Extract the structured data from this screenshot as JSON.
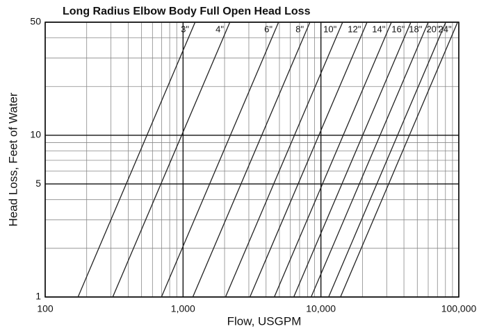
{
  "chart_data": {
    "type": "line",
    "title": "Long Radius Elbow Body Full Open Head Loss",
    "x_label": "Flow, USGPM",
    "y_label": "Head Loss, Feet of Water",
    "log_x": true,
    "log_y": true,
    "grid": true,
    "color": "#222222",
    "xlim": [
      100,
      100000
    ],
    "ylim": [
      1,
      50
    ],
    "xticks": [
      100,
      {
        "value": 1000,
        "label": "1,000"
      },
      {
        "value": 10000,
        "label": "10,000"
      },
      {
        "value": 100000,
        "label": "100,000"
      }
    ],
    "yticks": [
      1,
      5,
      10,
      50
    ],
    "series": [
      {
        "name": "3\"",
        "x": [
          173,
          1223
        ],
        "values": [
          1,
          50
        ]
      },
      {
        "name": "4\"",
        "x": [
          309,
          2185
        ],
        "values": [
          1,
          50
        ]
      },
      {
        "name": "6\"",
        "x": [
          697,
          4928
        ],
        "values": [
          1,
          50
        ]
      },
      {
        "name": "8\"",
        "x": [
          1177,
          8322
        ],
        "values": [
          1,
          50
        ]
      },
      {
        "name": "10\"",
        "x": [
          2032,
          14370
        ],
        "values": [
          1,
          50
        ]
      },
      {
        "name": "12\"",
        "x": [
          3055,
          21600
        ],
        "values": [
          1,
          50
        ]
      },
      {
        "name": "14\"",
        "x": [
          4590,
          32450
        ],
        "values": [
          1,
          50
        ]
      },
      {
        "name": "16\"",
        "x": [
          6350,
          44900
        ],
        "values": [
          1,
          50
        ]
      },
      {
        "name": "18\"",
        "x": [
          8490,
          60030
        ],
        "values": [
          1,
          50
        ]
      },
      {
        "name": "20\"",
        "x": [
          11370,
          80390
        ],
        "values": [
          1,
          50
        ]
      },
      {
        "name": "24\"",
        "x": [
          13860,
          98000
        ],
        "values": [
          1,
          50
        ]
      }
    ]
  }
}
